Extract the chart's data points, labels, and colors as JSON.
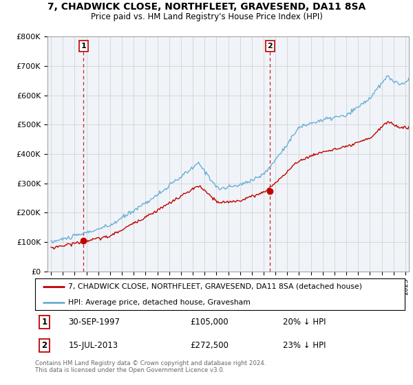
{
  "title": "7, CHADWICK CLOSE, NORTHFLEET, GRAVESEND, DA11 8SA",
  "subtitle": "Price paid vs. HM Land Registry's House Price Index (HPI)",
  "ylim": [
    0,
    800000
  ],
  "yticks": [
    0,
    100000,
    200000,
    300000,
    400000,
    500000,
    600000,
    700000,
    800000
  ],
  "ytick_labels": [
    "£0",
    "£100K",
    "£200K",
    "£300K",
    "£400K",
    "£500K",
    "£600K",
    "£700K",
    "£800K"
  ],
  "xlim_start": 1994.7,
  "xlim_end": 2025.3,
  "sale1": {
    "date_x": 1997.75,
    "price": 105000,
    "label": "1",
    "date_str": "30-SEP-1997",
    "price_str": "£105,000",
    "hpi_str": "20% ↓ HPI"
  },
  "sale2": {
    "date_x": 2013.54,
    "price": 272500,
    "label": "2",
    "date_str": "15-JUL-2013",
    "price_str": "£272,500",
    "hpi_str": "23% ↓ HPI"
  },
  "legend_line1": "7, CHADWICK CLOSE, NORTHFLEET, GRAVESEND, DA11 8SA (detached house)",
  "legend_line2": "HPI: Average price, detached house, Gravesham",
  "footer": "Contains HM Land Registry data © Crown copyright and database right 2024.\nThis data is licensed under the Open Government Licence v3.0.",
  "hpi_color": "#6aaed6",
  "sale_color": "#c00000",
  "background_color": "#f0f4f8",
  "grid_color": "#cccccc"
}
